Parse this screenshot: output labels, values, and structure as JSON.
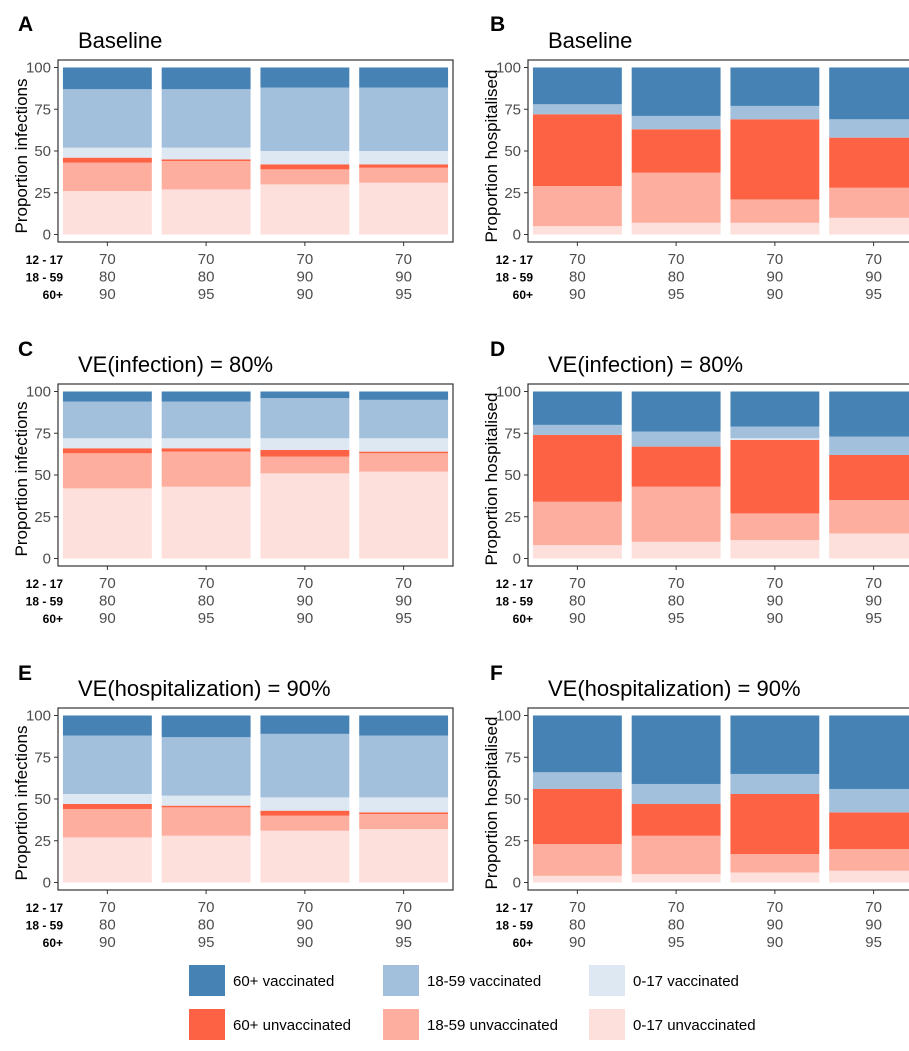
{
  "group_labels": [
    "12 - 17",
    "18 - 59",
    "60+"
  ],
  "coverage_columns": [
    [
      "70",
      "80",
      "90"
    ],
    [
      "70",
      "80",
      "95"
    ],
    [
      "70",
      "90",
      "90"
    ],
    [
      "70",
      "90",
      "95"
    ]
  ],
  "colors": {
    "60+ vaccinated": "#4682b4",
    "18-59 vaccinated": "#a2bfdb",
    "0-17 vaccinated": "#dde8f2",
    "60+ unvaccinated": "#fe6244",
    "18-59 unvaccinated": "#fdae9f",
    "0-17 unvaccinated": "#fddfdb"
  },
  "legend": [
    {
      "label": "60+ vaccinated",
      "color": "#4682b4"
    },
    {
      "label": "18-59 vaccinated",
      "color": "#a2bfdb"
    },
    {
      "label": "0-17 vaccinated",
      "color": "#dde8f2"
    },
    {
      "label": "60+ unvaccinated",
      "color": "#fe6244"
    },
    {
      "label": "18-59 unvaccinated",
      "color": "#fdae9f"
    },
    {
      "label": "0-17 unvaccinated",
      "color": "#fddfdb"
    }
  ],
  "chart_data": [
    {
      "type": "bar",
      "panel": "A",
      "title": "Baseline",
      "ylabel": "Proportion infections",
      "ylim": [
        0,
        100
      ],
      "yticks": [
        0,
        25,
        50,
        75,
        100
      ],
      "stack_order": [
        "0-17 unvaccinated",
        "18-59 unvaccinated",
        "60+ unvaccinated",
        "0-17 vaccinated",
        "18-59 vaccinated",
        "60+ vaccinated"
      ],
      "series": [
        {
          "name": "0-17 unvaccinated",
          "values": [
            26,
            27,
            30,
            31
          ]
        },
        {
          "name": "18-59 unvaccinated",
          "values": [
            17,
            17,
            9,
            9
          ]
        },
        {
          "name": "60+ unvaccinated",
          "values": [
            3,
            1,
            3,
            2
          ]
        },
        {
          "name": "0-17 vaccinated",
          "values": [
            6,
            7,
            8,
            8
          ]
        },
        {
          "name": "18-59 vaccinated",
          "values": [
            35,
            35,
            38,
            38
          ]
        },
        {
          "name": "60+ vaccinated",
          "values": [
            13,
            13,
            12,
            12
          ]
        }
      ]
    },
    {
      "type": "bar",
      "panel": "B",
      "title": "Baseline",
      "ylabel": "Proportion hospitalised",
      "ylim": [
        0,
        100
      ],
      "yticks": [
        0,
        25,
        50,
        75,
        100
      ],
      "stack_order": [
        "0-17 unvaccinated",
        "18-59 unvaccinated",
        "60+ unvaccinated",
        "0-17 vaccinated",
        "18-59 vaccinated",
        "60+ vaccinated"
      ],
      "series": [
        {
          "name": "0-17 unvaccinated",
          "values": [
            5,
            7,
            7,
            10
          ]
        },
        {
          "name": "18-59 unvaccinated",
          "values": [
            24,
            30,
            14,
            18
          ]
        },
        {
          "name": "60+ unvaccinated",
          "values": [
            43,
            26,
            48,
            30
          ]
        },
        {
          "name": "0-17 vaccinated",
          "values": [
            0,
            0,
            0,
            0
          ]
        },
        {
          "name": "18-59 vaccinated",
          "values": [
            6,
            8,
            8,
            11
          ]
        },
        {
          "name": "60+ vaccinated",
          "values": [
            22,
            29,
            23,
            31
          ]
        }
      ]
    },
    {
      "type": "bar",
      "panel": "C",
      "title": "VE(infection) = 80%",
      "ylabel": "Proportion infections",
      "ylim": [
        0,
        100
      ],
      "yticks": [
        0,
        25,
        50,
        75,
        100
      ],
      "stack_order": [
        "0-17 unvaccinated",
        "18-59 unvaccinated",
        "60+ unvaccinated",
        "0-17 vaccinated",
        "18-59 vaccinated",
        "60+ vaccinated"
      ],
      "series": [
        {
          "name": "0-17 unvaccinated",
          "values": [
            42,
            43,
            51,
            52
          ]
        },
        {
          "name": "18-59 unvaccinated",
          "values": [
            21,
            21,
            10,
            11
          ]
        },
        {
          "name": "60+ unvaccinated",
          "values": [
            3,
            2,
            4,
            1
          ]
        },
        {
          "name": "0-17 vaccinated",
          "values": [
            6,
            6,
            7,
            8
          ]
        },
        {
          "name": "18-59 vaccinated",
          "values": [
            22,
            22,
            24,
            23
          ]
        },
        {
          "name": "60+ vaccinated",
          "values": [
            6,
            6,
            4,
            5
          ]
        }
      ]
    },
    {
      "type": "bar",
      "panel": "D",
      "title": "VE(infection) = 80%",
      "ylabel": "Proportion hospitalised",
      "ylim": [
        0,
        100
      ],
      "yticks": [
        0,
        25,
        50,
        75,
        100
      ],
      "stack_order": [
        "0-17 unvaccinated",
        "18-59 unvaccinated",
        "60+ unvaccinated",
        "0-17 vaccinated",
        "18-59 vaccinated",
        "60+ vaccinated"
      ],
      "series": [
        {
          "name": "0-17 unvaccinated",
          "values": [
            8,
            10,
            11,
            15
          ]
        },
        {
          "name": "18-59 unvaccinated",
          "values": [
            26,
            33,
            16,
            20
          ]
        },
        {
          "name": "60+ unvaccinated",
          "values": [
            40,
            24,
            44,
            27
          ]
        },
        {
          "name": "0-17 vaccinated",
          "values": [
            0,
            0,
            1,
            0
          ]
        },
        {
          "name": "18-59 vaccinated",
          "values": [
            6,
            9,
            7,
            11
          ]
        },
        {
          "name": "60+ vaccinated",
          "values": [
            20,
            24,
            21,
            27
          ]
        }
      ]
    },
    {
      "type": "bar",
      "panel": "E",
      "title": "VE(hospitalization) = 90%",
      "ylabel": "Proportion infections",
      "ylim": [
        0,
        100
      ],
      "yticks": [
        0,
        25,
        50,
        75,
        100
      ],
      "stack_order": [
        "0-17 unvaccinated",
        "18-59 unvaccinated",
        "60+ unvaccinated",
        "0-17 vaccinated",
        "18-59 vaccinated",
        "60+ vaccinated"
      ],
      "series": [
        {
          "name": "0-17 unvaccinated",
          "values": [
            27,
            28,
            31,
            32
          ]
        },
        {
          "name": "18-59 unvaccinated",
          "values": [
            17,
            17,
            9,
            9
          ]
        },
        {
          "name": "60+ unvaccinated",
          "values": [
            3,
            1,
            3,
            1
          ]
        },
        {
          "name": "0-17 vaccinated",
          "values": [
            6,
            6,
            8,
            9
          ]
        },
        {
          "name": "18-59 vaccinated",
          "values": [
            35,
            35,
            38,
            37
          ]
        },
        {
          "name": "60+ vaccinated",
          "values": [
            12,
            13,
            11,
            12
          ]
        }
      ]
    },
    {
      "type": "bar",
      "panel": "F",
      "title": "VE(hospitalization) = 90%",
      "ylabel": "Proportion hospitalised",
      "ylim": [
        0,
        100
      ],
      "yticks": [
        0,
        25,
        50,
        75,
        100
      ],
      "stack_order": [
        "0-17 unvaccinated",
        "18-59 unvaccinated",
        "60+ unvaccinated",
        "0-17 vaccinated",
        "18-59 vaccinated",
        "60+ vaccinated"
      ],
      "series": [
        {
          "name": "0-17 unvaccinated",
          "values": [
            4,
            5,
            6,
            7
          ]
        },
        {
          "name": "18-59 unvaccinated",
          "values": [
            19,
            23,
            11,
            13
          ]
        },
        {
          "name": "60+ unvaccinated",
          "values": [
            33,
            19,
            36,
            22
          ]
        },
        {
          "name": "0-17 vaccinated",
          "values": [
            0,
            0,
            0,
            0
          ]
        },
        {
          "name": "18-59 vaccinated",
          "values": [
            10,
            12,
            12,
            14
          ]
        },
        {
          "name": "60+ vaccinated",
          "values": [
            34,
            41,
            35,
            44
          ]
        }
      ]
    }
  ]
}
